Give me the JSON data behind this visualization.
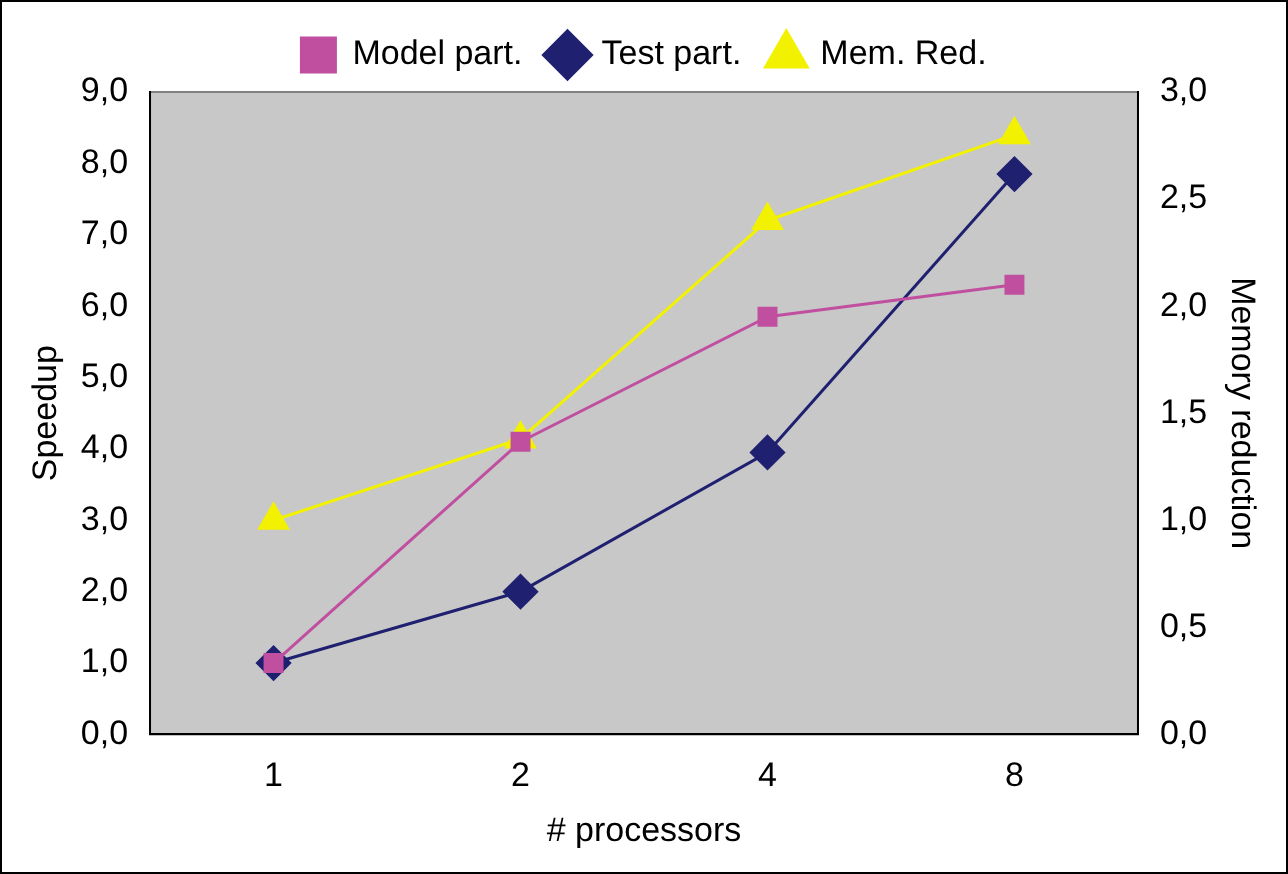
{
  "chart_data": {
    "type": "line",
    "categories": [
      "1",
      "2",
      "4",
      "8"
    ],
    "xlabel": "# processors",
    "ylabel": "Speedup",
    "y2label": "Memory reduction",
    "series": [
      {
        "name": "Model part.",
        "color": "#c04fa0",
        "values": [
          1.0,
          4.1,
          5.85,
          6.3
        ],
        "marker": "square"
      },
      {
        "name": "Test part.",
        "color": "#1f2070",
        "values": [
          1.0,
          2.0,
          3.95,
          7.85
        ],
        "marker": "diamond"
      },
      {
        "name": "Mem. Red.",
        "color": "#f2f200",
        "values": [
          1.0,
          1.38,
          2.4,
          2.8
        ],
        "marker": "triangle",
        "axis": "y2"
      }
    ],
    "ylim": [
      0,
      9
    ],
    "yticks": [
      {
        "value": 0,
        "label": "0,0"
      },
      {
        "value": 1,
        "label": "1,0"
      },
      {
        "value": 2,
        "label": "2,0"
      },
      {
        "value": 3,
        "label": "3,0"
      },
      {
        "value": 4,
        "label": "4,0"
      },
      {
        "value": 5,
        "label": "5,0"
      },
      {
        "value": 6,
        "label": "6,0"
      },
      {
        "value": 7,
        "label": "7,0"
      },
      {
        "value": 8,
        "label": "8,0"
      },
      {
        "value": 9,
        "label": "9,0"
      }
    ],
    "y2lim": [
      0,
      3
    ],
    "y2ticks": [
      {
        "value": 0,
        "label": "0,0"
      },
      {
        "value": 0.5,
        "label": "0,5"
      },
      {
        "value": 1,
        "label": "1,0"
      },
      {
        "value": 1.5,
        "label": "1,5"
      },
      {
        "value": 2,
        "label": "2,0"
      },
      {
        "value": 2.5,
        "label": "2,5"
      },
      {
        "value": 3,
        "label": "3,0"
      }
    ],
    "legend": "top",
    "grid": false,
    "line_style": "solid"
  }
}
